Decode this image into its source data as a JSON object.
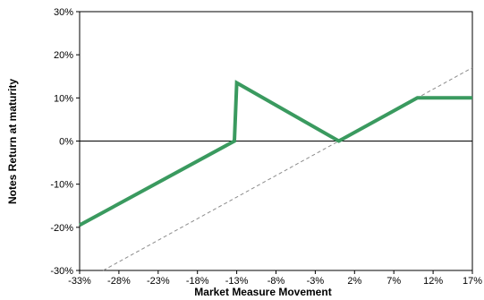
{
  "chart_data": {
    "type": "line",
    "title": "",
    "xlabel": "Market Measure Movement",
    "ylabel": "Notes Return at maturity",
    "xlim": [
      -33,
      17
    ],
    "ylim": [
      -30,
      30
    ],
    "x_ticks": [
      -33,
      -28,
      -23,
      -18,
      -13,
      -8,
      -3,
      2,
      7,
      12,
      17
    ],
    "x_tick_labels": [
      "-33%",
      "-28%",
      "-23%",
      "-18%",
      "-13%",
      "-8%",
      "-3%",
      "2%",
      "7%",
      "12%",
      "17%"
    ],
    "y_ticks": [
      -30,
      -20,
      -10,
      0,
      10,
      20,
      30
    ],
    "y_tick_labels": [
      "-30%",
      "-20%",
      "-10%",
      "0%",
      "10%",
      "20%",
      "30%"
    ],
    "grid": false,
    "legend": "none",
    "series": [
      {
        "style": "solid-thick",
        "color": "#3a9a5f",
        "x": [
          -33,
          -13.3,
          -13.3,
          -13,
          0,
          10,
          17
        ],
        "y": [
          -19.5,
          0,
          0,
          13.5,
          0,
          10,
          10
        ]
      },
      {
        "style": "dashed",
        "color": "#8c8c8c",
        "x": [
          -30,
          17
        ],
        "y": [
          -30,
          17
        ]
      }
    ]
  }
}
